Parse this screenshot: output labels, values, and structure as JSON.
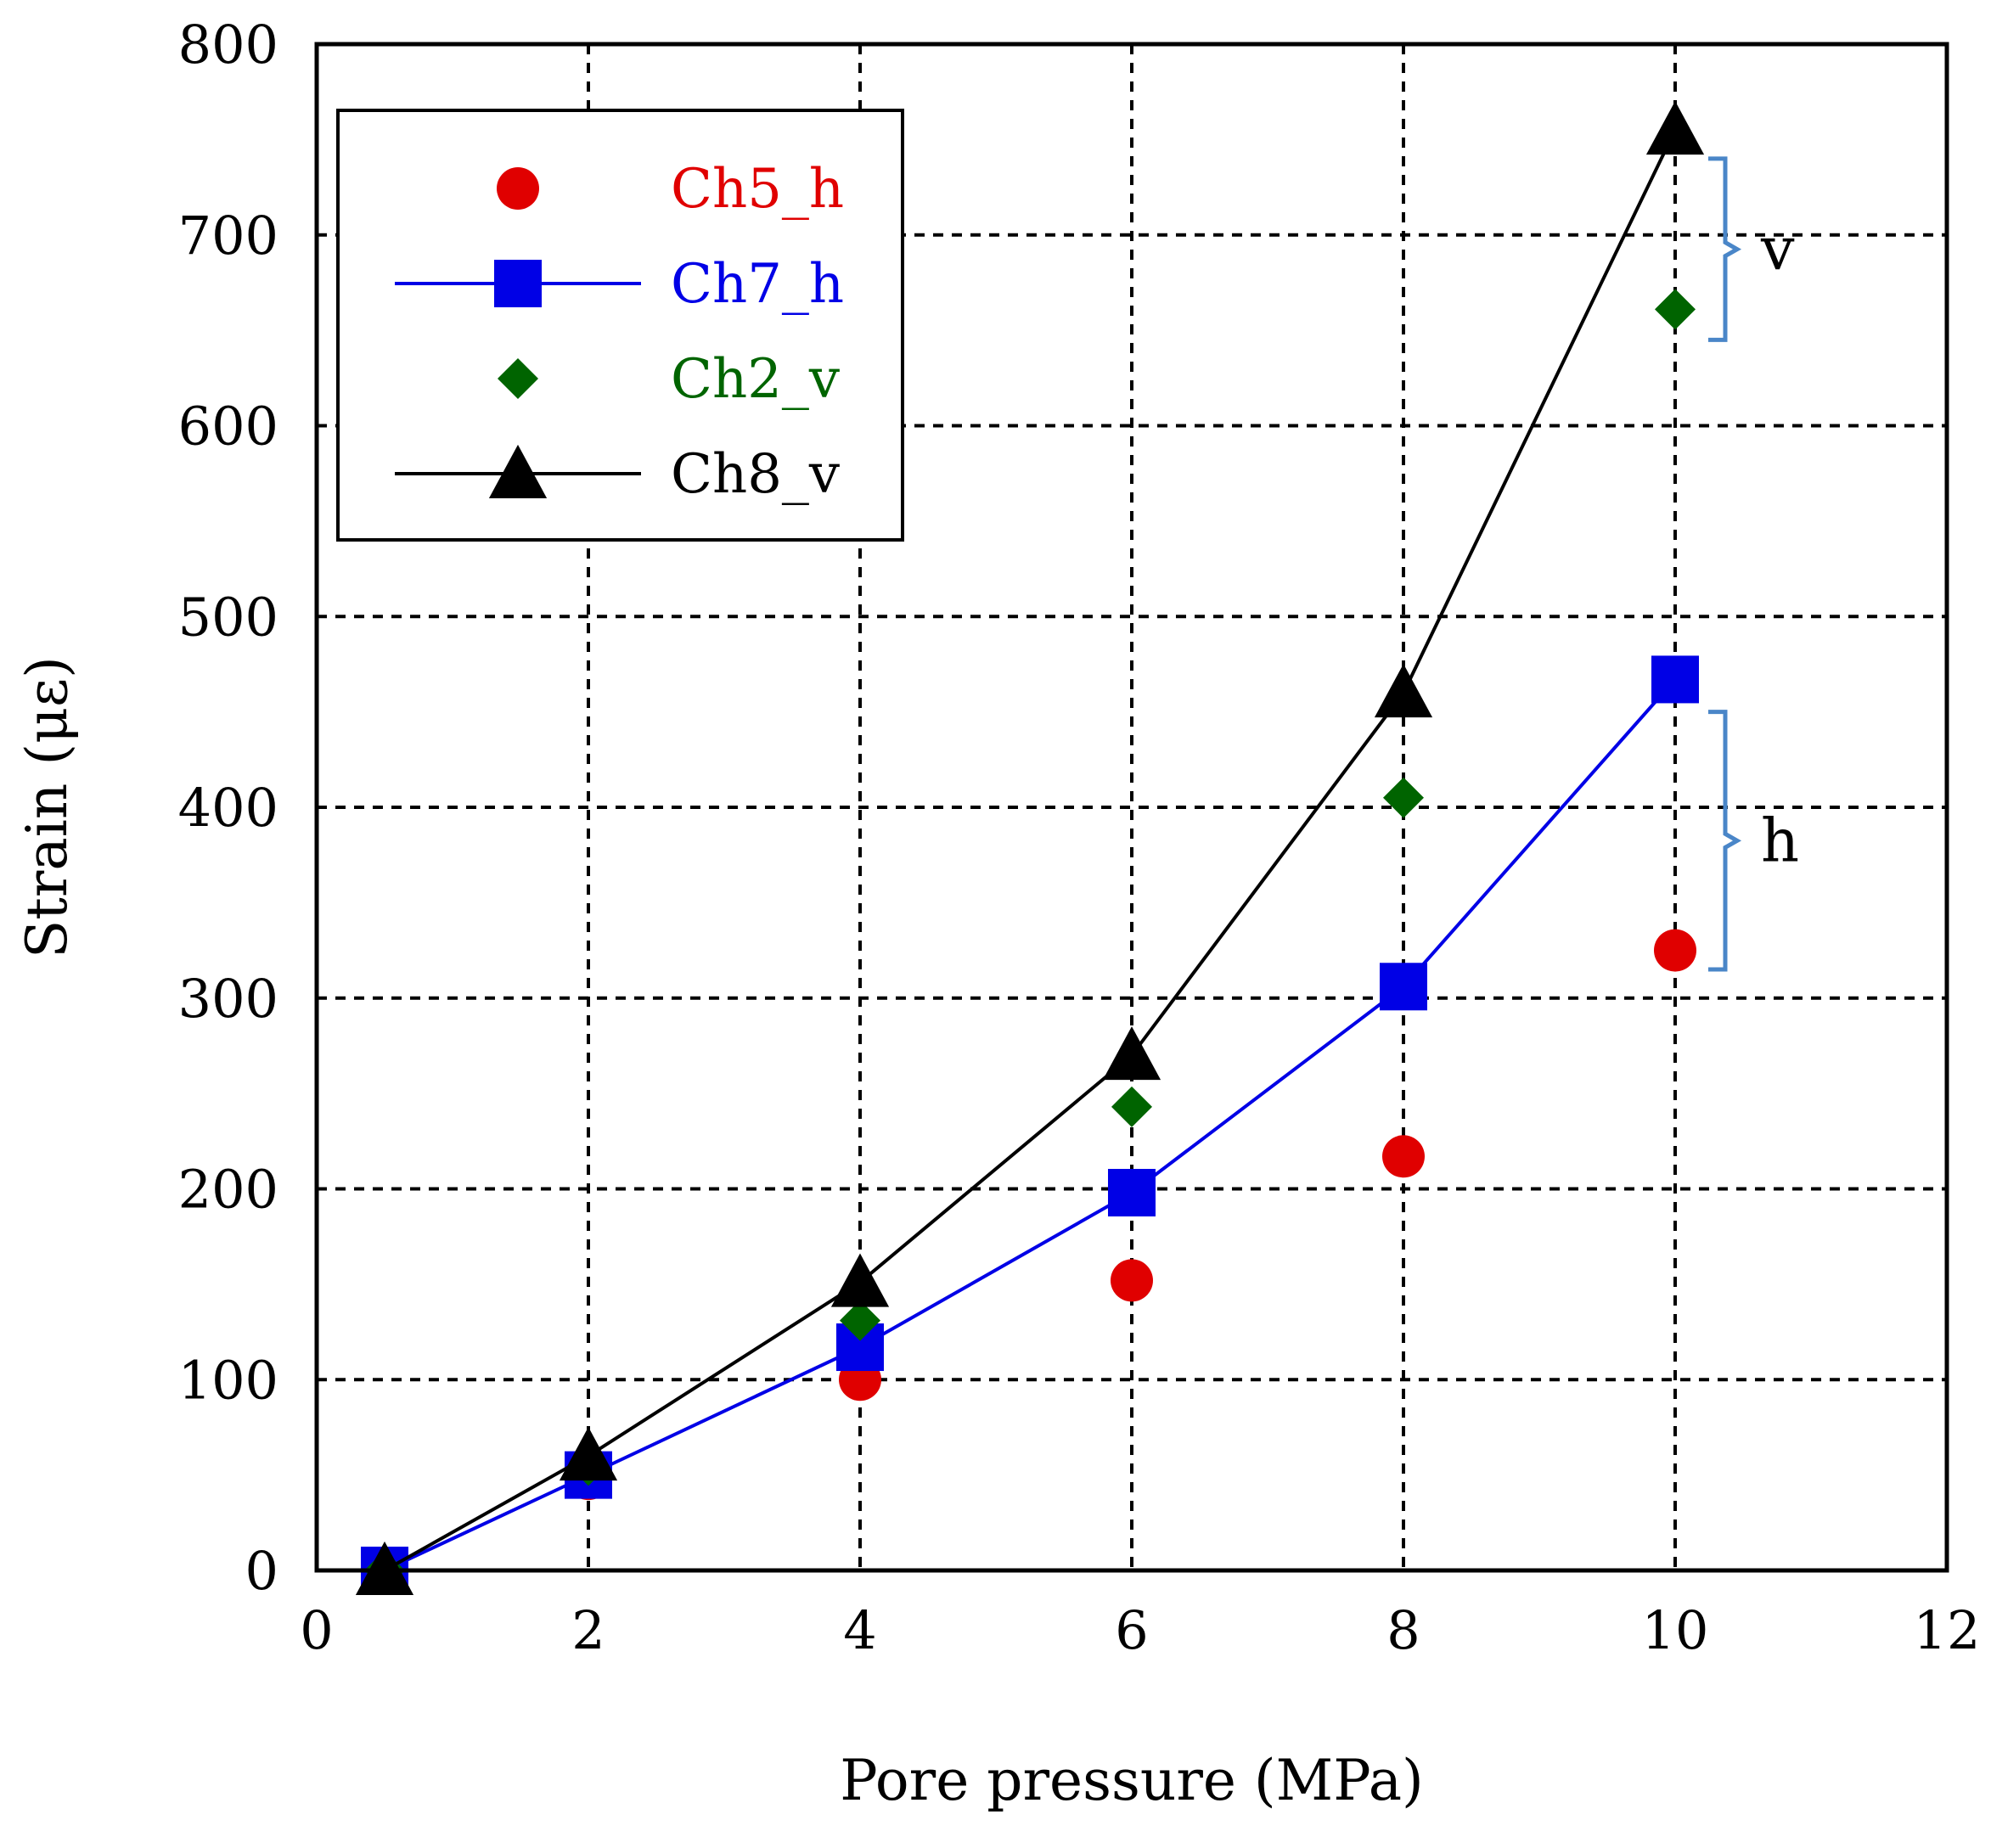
{
  "chart_data": {
    "type": "scatter",
    "xlabel": "Pore pressure (MPa)",
    "ylabel": "Strain (με)",
    "xlim": [
      0,
      12
    ],
    "ylim": [
      0,
      800
    ],
    "xticks": [
      "0",
      "2",
      "4",
      "6",
      "8",
      "10",
      "12"
    ],
    "yticks": [
      "0",
      "100",
      "200",
      "300",
      "400",
      "500",
      "600",
      "700",
      "800"
    ],
    "grid": true,
    "legend_position": "top-left",
    "series": [
      {
        "name": "Ch5_h",
        "color": "#e00000",
        "marker": "circle",
        "line": false,
        "x": [
          0.5,
          2,
          4,
          6,
          8,
          10
        ],
        "y": [
          0,
          48,
          100,
          152,
          217,
          325
        ]
      },
      {
        "name": "Ch7_h",
        "color": "#0000e6",
        "marker": "square",
        "line": true,
        "x": [
          0.5,
          2,
          4,
          6,
          8,
          10
        ],
        "y": [
          0,
          50,
          117,
          198,
          306,
          467
        ]
      },
      {
        "name": "Ch2_v",
        "color": "#006400",
        "marker": "diamond",
        "line": false,
        "x": [
          0.5,
          2,
          4,
          6,
          8,
          10
        ],
        "y": [
          0,
          55,
          131,
          243,
          405,
          661
        ]
      },
      {
        "name": "Ch8_v",
        "color": "#000000",
        "marker": "triangle",
        "line": true,
        "x": [
          0.5,
          2,
          4,
          6,
          8,
          10
        ],
        "y": [
          0,
          60,
          151,
          270,
          460,
          755
        ]
      }
    ],
    "annotations": [
      {
        "label": "v",
        "y_range": [
          645,
          740
        ],
        "color": "#4a86c8"
      },
      {
        "label": "h",
        "y_range": [
          315,
          450
        ],
        "color": "#4a86c8"
      }
    ]
  }
}
